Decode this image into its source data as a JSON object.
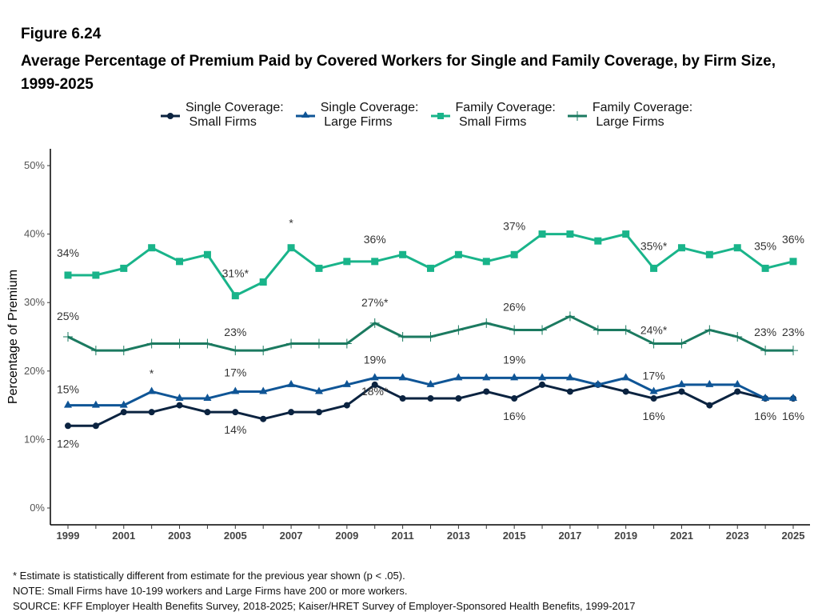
{
  "figure_number": "Figure 6.24",
  "title": "Average Percentage of Premium Paid by Covered Workers for Single and Family Coverage, by Firm Size, 1999-2025",
  "footer": {
    "note_asterisk": "* Estimate is statistically different from estimate for the previous year shown (p < .05).",
    "note": "NOTE: Small Firms have 10-199 workers and Large Firms have 200 or more workers.",
    "source": "SOURCE: KFF Employer Health Benefits Survey, 2018-2025; Kaiser/HRET Survey of Employer-Sponsored Health Benefits, 1999-2017"
  },
  "chart_data": {
    "type": "line",
    "title": "Average Percentage of Premium Paid by Covered Workers for Single and Family Coverage, by Firm Size, 1999-2025",
    "xlabel": "",
    "ylabel": "Percentage of Premium",
    "ylim": [
      0,
      50
    ],
    "yticks": [
      0,
      10,
      20,
      30,
      40,
      50
    ],
    "ytick_labels": [
      "0%",
      "10%",
      "20%",
      "30%",
      "40%",
      "50%"
    ],
    "x": [
      1999,
      2000,
      2001,
      2002,
      2003,
      2004,
      2005,
      2006,
      2007,
      2008,
      2009,
      2010,
      2011,
      2012,
      2013,
      2014,
      2015,
      2016,
      2017,
      2018,
      2019,
      2020,
      2021,
      2022,
      2023,
      2024,
      2025
    ],
    "xtick_labels": [
      "1999",
      "2001",
      "2003",
      "2005",
      "2007",
      "2009",
      "2011",
      "2013",
      "2015",
      "2017",
      "2019",
      "2021",
      "2023",
      "2025"
    ],
    "grid": false,
    "legend_position": "top-center",
    "series": [
      {
        "name": "Single Coverage:\n Small Firms",
        "color": "#0b2340",
        "marker": "circle",
        "values": [
          12,
          12,
          14,
          14,
          15,
          14,
          14,
          13,
          14,
          14,
          15,
          18,
          16,
          16,
          16,
          17,
          16,
          18,
          17,
          18,
          17,
          16,
          17,
          15,
          17,
          16,
          16
        ],
        "labels": [
          {
            "year": 1999,
            "text": "12%",
            "pos": "below"
          },
          {
            "year": 2005,
            "text": "14%",
            "pos": "below"
          },
          {
            "year": 2010,
            "text": "18%*",
            "pos": "below"
          },
          {
            "year": 2015,
            "text": "16%",
            "pos": "below"
          },
          {
            "year": 2020,
            "text": "16%",
            "pos": "below"
          },
          {
            "year": 2024,
            "text": "16%",
            "pos": "below"
          },
          {
            "year": 2025,
            "text": "16%",
            "pos": "below"
          }
        ]
      },
      {
        "name": "Single Coverage:\n Large Firms",
        "color": "#0f5596",
        "marker": "triangle",
        "values": [
          15,
          15,
          15,
          17,
          16,
          16,
          17,
          17,
          18,
          17,
          18,
          19,
          19,
          18,
          19,
          19,
          19,
          19,
          19,
          18,
          19,
          17,
          18,
          18,
          18,
          16,
          16
        ],
        "labels": [
          {
            "year": 1999,
            "text": "15%",
            "pos": "above"
          },
          {
            "year": 2002,
            "text": "*",
            "pos": "above"
          },
          {
            "year": 2005,
            "text": "17%",
            "pos": "above"
          },
          {
            "year": 2010,
            "text": "19%",
            "pos": "above"
          },
          {
            "year": 2015,
            "text": "19%",
            "pos": "above"
          },
          {
            "year": 2020,
            "text": "17%",
            "pos": "above"
          }
        ]
      },
      {
        "name": "Family Coverage:\n Small Firms",
        "color": "#19b48a",
        "marker": "square",
        "values": [
          34,
          34,
          35,
          38,
          36,
          37,
          31,
          33,
          38,
          35,
          36,
          36,
          37,
          35,
          37,
          36,
          37,
          40,
          40,
          39,
          40,
          35,
          38,
          37,
          38,
          35,
          36
        ],
        "labels": [
          {
            "year": 1999,
            "text": "34%",
            "pos": "above"
          },
          {
            "year": 2005,
            "text": "31%*",
            "pos": "above"
          },
          {
            "year": 2007,
            "text": "*",
            "pos": "above"
          },
          {
            "year": 2010,
            "text": "36%",
            "pos": "above"
          },
          {
            "year": 2015,
            "text": "37%",
            "pos": "above"
          },
          {
            "year": 2020,
            "text": "35%*",
            "pos": "above"
          },
          {
            "year": 2024,
            "text": "35%",
            "pos": "above"
          },
          {
            "year": 2025,
            "text": "36%",
            "pos": "above"
          }
        ]
      },
      {
        "name": "Family Coverage:\n Large Firms",
        "color": "#1b7a60",
        "marker": "plus",
        "values": [
          25,
          23,
          23,
          24,
          24,
          24,
          23,
          23,
          24,
          24,
          24,
          27,
          25,
          25,
          26,
          27,
          26,
          26,
          28,
          26,
          26,
          24,
          24,
          26,
          25,
          23,
          23
        ],
        "labels": [
          {
            "year": 1999,
            "text": "25%",
            "pos": "above"
          },
          {
            "year": 2005,
            "text": "23%",
            "pos": "above"
          },
          {
            "year": 2010,
            "text": "27%*",
            "pos": "above"
          },
          {
            "year": 2015,
            "text": "26%",
            "pos": "above"
          },
          {
            "year": 2020,
            "text": "24%*",
            "pos": "above"
          },
          {
            "year": 2024,
            "text": "23%",
            "pos": "above"
          },
          {
            "year": 2025,
            "text": "23%",
            "pos": "above"
          }
        ]
      }
    ]
  }
}
